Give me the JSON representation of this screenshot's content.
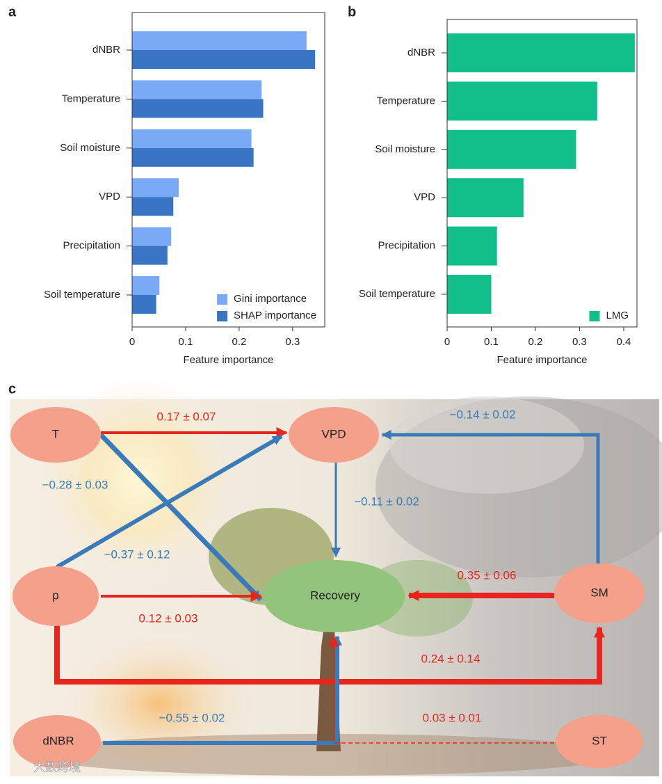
{
  "chart_data": [
    {
      "type": "barh",
      "panel": "a",
      "categories": [
        "dNBR",
        "Temperature",
        "Soil moisture",
        "VPD",
        "Precipitation",
        "Soil temperature"
      ],
      "series": [
        {
          "name": "Gini importance",
          "color": "#7aaaf6",
          "values": [
            0.326,
            0.242,
            0.223,
            0.087,
            0.073,
            0.051
          ]
        },
        {
          "name": "SHAP importance",
          "color": "#3a74c4",
          "values": [
            0.342,
            0.245,
            0.227,
            0.077,
            0.066,
            0.045
          ]
        }
      ],
      "xlabel": "Feature importance",
      "xlim": [
        0,
        0.36
      ],
      "xticks": [
        0,
        0.1,
        0.2,
        0.3
      ],
      "legend": "lower right"
    },
    {
      "type": "barh",
      "panel": "b",
      "categories": [
        "dNBR",
        "Temperature",
        "Soil moisture",
        "VPD",
        "Precipitation",
        "Soil temperature"
      ],
      "series": [
        {
          "name": "LMG",
          "color": "#12bf8b",
          "values": [
            0.425,
            0.34,
            0.292,
            0.173,
            0.113,
            0.1
          ]
        }
      ],
      "xlabel": "Feature importance",
      "xlim": [
        0,
        0.43
      ],
      "xticks": [
        0,
        0.1,
        0.2,
        0.3,
        0.4
      ],
      "legend": "lower right"
    }
  ],
  "diagram": {
    "panel": "c",
    "nodes": [
      {
        "label": "T"
      },
      {
        "label": "VPD"
      },
      {
        "label": "p"
      },
      {
        "label": "Recovery"
      },
      {
        "label": "SM"
      },
      {
        "label": "dNBR"
      },
      {
        "label": "ST"
      }
    ],
    "edges": [
      {
        "label": "0.17 ± 0.07"
      },
      {
        "label": "−0.37 ± 0.12"
      },
      {
        "label": "−0.28 ± 0.03"
      },
      {
        "label": "−0.14 ± 0.02"
      },
      {
        "label": "−0.11 ± 0.02"
      },
      {
        "label": "0.12 ± 0.03"
      },
      {
        "label": "0.35 ± 0.06"
      },
      {
        "label": "0.24 ± 0.14"
      },
      {
        "label": "−0.55 ± 0.02"
      },
      {
        "label": "0.03 ± 0.01"
      }
    ],
    "watermark": "大数跨境"
  }
}
